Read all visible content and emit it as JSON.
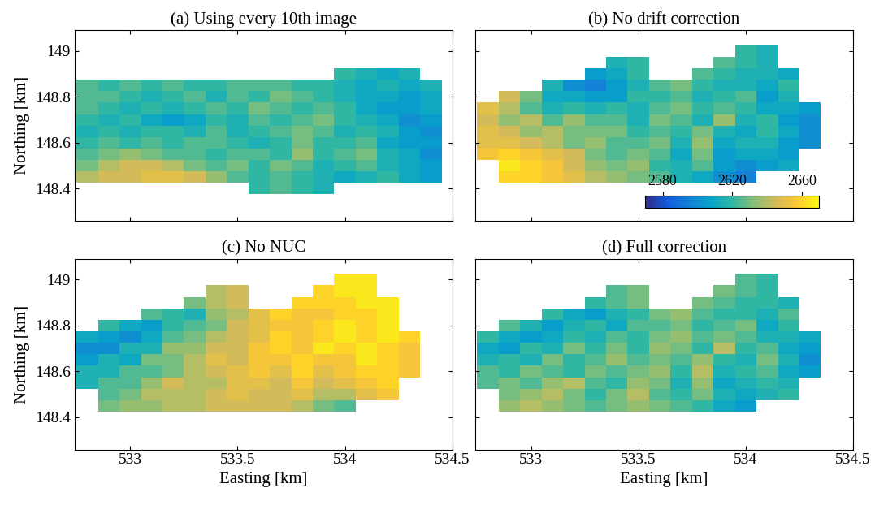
{
  "chart_data": [
    {
      "type": "heatmap",
      "title": "(a) Using every 10th image",
      "ylabel": "Northing [km]",
      "tick_labels": "y",
      "xlim": [
        532.74,
        534.5
      ],
      "ylim": [
        148.26,
        149.09
      ],
      "xticks": [
        533,
        533.5,
        534,
        534.5
      ],
      "yticks": [
        148.4,
        148.6,
        148.8,
        149
      ],
      "clim": [
        2570,
        2670
      ],
      "x": [
        532.8,
        532.9,
        533.0,
        533.1,
        533.2,
        533.3,
        533.4,
        533.5,
        533.6,
        533.7,
        533.8,
        533.9,
        534.0,
        534.1,
        534.2,
        534.3,
        534.4
      ],
      "y": [
        148.4,
        148.45,
        148.5,
        148.55,
        148.6,
        148.65,
        148.7,
        148.75,
        148.8,
        148.85,
        148.9,
        148.95,
        149.0
      ],
      "cells": [
        [
          null,
          null,
          null,
          null,
          null,
          null,
          null,
          null,
          2620,
          2625,
          2620,
          2615,
          null,
          null,
          null,
          null,
          null
        ],
        [
          2640,
          2645,
          2645,
          2650,
          2650,
          2645,
          2635,
          2625,
          2620,
          2625,
          2620,
          2615,
          2610,
          2615,
          2620,
          2610,
          2605
        ],
        [
          2630,
          2640,
          2645,
          2645,
          2640,
          2630,
          2625,
          2630,
          2620,
          2630,
          2625,
          2615,
          2620,
          2625,
          2615,
          2610,
          2605
        ],
        [
          2625,
          2630,
          2635,
          2630,
          2625,
          2625,
          2620,
          2625,
          2625,
          2620,
          2635,
          2620,
          2625,
          2630,
          2615,
          2610,
          2600
        ],
        [
          2620,
          2625,
          2620,
          2625,
          2620,
          2625,
          2625,
          2620,
          2615,
          2620,
          2630,
          2620,
          2620,
          2625,
          2610,
          2605,
          2605
        ],
        [
          2615,
          2620,
          2615,
          2620,
          2620,
          2615,
          2625,
          2615,
          2620,
          2625,
          2630,
          2625,
          2615,
          2620,
          2615,
          2605,
          2600
        ],
        [
          2620,
          2615,
          2620,
          2610,
          2605,
          2610,
          2620,
          2615,
          2625,
          2620,
          2625,
          2630,
          2620,
          2615,
          2610,
          2600,
          2605
        ],
        [
          2625,
          2620,
          2615,
          2620,
          2615,
          2620,
          2625,
          2620,
          2630,
          2625,
          2620,
          2625,
          2620,
          2610,
          2605,
          2605,
          2610
        ],
        [
          2625,
          2625,
          2620,
          2615,
          2620,
          2625,
          2615,
          2625,
          2620,
          2630,
          2625,
          2620,
          2615,
          2610,
          2610,
          2605,
          2610
        ],
        [
          2625,
          2620,
          2625,
          2620,
          2625,
          2620,
          2620,
          2625,
          2625,
          2625,
          2620,
          2620,
          2615,
          2610,
          2615,
          2610,
          2615
        ],
        [
          null,
          null,
          null,
          null,
          null,
          null,
          null,
          null,
          null,
          null,
          null,
          null,
          2620,
          2615,
          2610,
          2615,
          null
        ],
        [
          null,
          null,
          null,
          null,
          null,
          null,
          null,
          null,
          null,
          null,
          null,
          null,
          null,
          null,
          null,
          null,
          null
        ],
        [
          null,
          null,
          null,
          null,
          null,
          null,
          null,
          null,
          null,
          null,
          null,
          null,
          null,
          null,
          null,
          null,
          null
        ]
      ]
    },
    {
      "type": "heatmap",
      "title": "(b) No drift correction",
      "tick_labels": false,
      "xlim": [
        532.74,
        534.5
      ],
      "ylim": [
        148.26,
        149.09
      ],
      "xticks": [
        533,
        533.5,
        534,
        534.5
      ],
      "yticks": [
        148.4,
        148.6,
        148.8,
        149
      ],
      "clim": [
        2570,
        2670
      ],
      "colorbar": {
        "ticks": [
          2580,
          2620,
          2660
        ]
      },
      "x": [
        532.8,
        532.9,
        533.0,
        533.1,
        533.2,
        533.3,
        533.4,
        533.5,
        533.6,
        533.7,
        533.8,
        533.9,
        534.0,
        534.1,
        534.2,
        534.3,
        534.4
      ],
      "y": [
        148.4,
        148.45,
        148.5,
        148.55,
        148.6,
        148.65,
        148.7,
        148.75,
        148.8,
        148.85,
        148.9,
        148.95,
        149.0
      ],
      "cells": [
        [
          null,
          null,
          null,
          null,
          null,
          null,
          null,
          null,
          null,
          null,
          null,
          null,
          null,
          null,
          null,
          null,
          null
        ],
        [
          null,
          2660,
          2660,
          2655,
          2650,
          2640,
          2635,
          2630,
          2625,
          2615,
          2610,
          2600,
          2595,
          null,
          null,
          null,
          null
        ],
        [
          null,
          2665,
          2660,
          2655,
          2645,
          2635,
          2630,
          2635,
          2620,
          2615,
          2625,
          2605,
          2600,
          2605,
          2610,
          null,
          null
        ],
        [
          2655,
          2660,
          2655,
          2650,
          2645,
          2630,
          2625,
          2630,
          2625,
          2610,
          2630,
          2605,
          2610,
          2610,
          2605,
          null,
          null
        ],
        [
          2650,
          2650,
          2645,
          2640,
          2630,
          2635,
          2625,
          2625,
          2630,
          2615,
          2635,
          2610,
          2615,
          2615,
          2605,
          2600,
          null
        ],
        [
          2650,
          2645,
          2635,
          2640,
          2630,
          2630,
          2630,
          2620,
          2625,
          2620,
          2630,
          2615,
          2610,
          2620,
          2610,
          2600,
          null
        ],
        [
          2645,
          2635,
          2640,
          2625,
          2635,
          2625,
          2625,
          2615,
          2630,
          2625,
          2615,
          2635,
          2615,
          2620,
          2605,
          2600,
          null
        ],
        [
          2650,
          2640,
          2625,
          2615,
          2620,
          2615,
          2620,
          2615,
          2625,
          2630,
          2620,
          2625,
          2620,
          2610,
          2610,
          2605,
          null
        ],
        [
          null,
          2645,
          2630,
          2610,
          2610,
          2605,
          2605,
          2620,
          2620,
          2625,
          2615,
          2620,
          2625,
          2605,
          2615,
          null,
          null
        ],
        [
          null,
          null,
          null,
          2615,
          2600,
          2595,
          2605,
          2615,
          2625,
          2630,
          2620,
          2615,
          2615,
          2610,
          2620,
          null,
          null
        ],
        [
          null,
          null,
          null,
          null,
          null,
          2605,
          2610,
          2620,
          null,
          null,
          2625,
          2620,
          2615,
          2615,
          2610,
          null,
          null
        ],
        [
          null,
          null,
          null,
          null,
          null,
          null,
          2615,
          2620,
          null,
          null,
          null,
          2625,
          2620,
          2615,
          null,
          null,
          null
        ],
        [
          null,
          null,
          null,
          null,
          null,
          null,
          null,
          null,
          null,
          null,
          null,
          null,
          2620,
          2615,
          null,
          null,
          null
        ]
      ]
    },
    {
      "type": "heatmap",
      "title": "(c) No NUC",
      "xlabel": "Easting [km]",
      "ylabel": "Northing [km]",
      "xlim": [
        532.74,
        534.5
      ],
      "ylim": [
        148.26,
        149.09
      ],
      "xticks": [
        533,
        533.5,
        534,
        534.5
      ],
      "yticks": [
        148.4,
        148.6,
        148.8,
        149
      ],
      "clim": [
        2570,
        2670
      ],
      "x": [
        532.8,
        532.9,
        533.0,
        533.1,
        533.2,
        533.3,
        533.4,
        533.5,
        533.6,
        533.7,
        533.8,
        533.9,
        534.0,
        534.1,
        534.2,
        534.3,
        534.4
      ],
      "y": [
        148.4,
        148.45,
        148.5,
        148.55,
        148.6,
        148.65,
        148.7,
        148.75,
        148.8,
        148.85,
        148.9,
        148.95,
        149.0
      ],
      "cells": [
        [
          null,
          null,
          null,
          null,
          null,
          null,
          null,
          null,
          null,
          null,
          null,
          null,
          null,
          null,
          null,
          null,
          null
        ],
        [
          null,
          2630,
          2635,
          2635,
          2640,
          2640,
          2645,
          2645,
          2645,
          2645,
          2640,
          2630,
          2625,
          null,
          null,
          null,
          null
        ],
        [
          null,
          2625,
          2630,
          2640,
          2640,
          2640,
          2645,
          2650,
          2645,
          2645,
          2650,
          2640,
          2640,
          2650,
          2655,
          null,
          null
        ],
        [
          2615,
          2625,
          2625,
          2635,
          2645,
          2640,
          2640,
          2650,
          2650,
          2645,
          2655,
          2645,
          2650,
          2655,
          2660,
          null,
          null
        ],
        [
          2615,
          2615,
          2625,
          2625,
          2630,
          2640,
          2645,
          2650,
          2655,
          2650,
          2660,
          2650,
          2655,
          2660,
          2660,
          2655,
          null
        ],
        [
          2605,
          2615,
          2610,
          2630,
          2630,
          2640,
          2650,
          2645,
          2655,
          2655,
          2660,
          2655,
          2655,
          2665,
          2660,
          2655,
          null
        ],
        [
          2600,
          2600,
          2615,
          2615,
          2635,
          2635,
          2645,
          2645,
          2655,
          2660,
          2655,
          2665,
          2660,
          2665,
          2660,
          2655,
          null
        ],
        [
          2610,
          2605,
          2600,
          2610,
          2625,
          2630,
          2640,
          2645,
          2650,
          2660,
          2655,
          2660,
          2665,
          2660,
          2665,
          2660,
          null
        ],
        [
          null,
          2620,
          2610,
          2605,
          2620,
          2625,
          2630,
          2645,
          2650,
          2655,
          2655,
          2660,
          2665,
          2660,
          2665,
          null,
          null
        ],
        [
          null,
          null,
          null,
          2625,
          2620,
          2615,
          2635,
          2640,
          2650,
          2660,
          2655,
          2655,
          2660,
          2660,
          2665,
          null,
          null
        ],
        [
          null,
          null,
          null,
          null,
          null,
          2630,
          2640,
          2645,
          null,
          null,
          2660,
          2660,
          2660,
          2665,
          2665,
          null,
          null
        ],
        [
          null,
          null,
          null,
          null,
          null,
          null,
          2640,
          2645,
          null,
          null,
          null,
          2660,
          2665,
          2665,
          null,
          null,
          null
        ],
        [
          null,
          null,
          null,
          null,
          null,
          null,
          null,
          null,
          null,
          null,
          null,
          null,
          2665,
          2665,
          null,
          null,
          null
        ]
      ]
    },
    {
      "type": "heatmap",
      "title": "(d) Full correction",
      "xlabel": "Easting [km]",
      "tick_labels": "x",
      "xlim": [
        532.74,
        534.5
      ],
      "ylim": [
        148.26,
        149.09
      ],
      "xticks": [
        533,
        533.5,
        534,
        534.5
      ],
      "yticks": [
        148.4,
        148.6,
        148.8,
        149
      ],
      "clim": [
        2570,
        2670
      ],
      "x": [
        532.8,
        532.9,
        533.0,
        533.1,
        533.2,
        533.3,
        533.4,
        533.5,
        533.6,
        533.7,
        533.8,
        533.9,
        534.0,
        534.1,
        534.2,
        534.3,
        534.4
      ],
      "y": [
        148.4,
        148.45,
        148.5,
        148.55,
        148.6,
        148.65,
        148.7,
        148.75,
        148.8,
        148.85,
        148.9,
        148.95,
        149.0
      ],
      "cells": [
        [
          null,
          null,
          null,
          null,
          null,
          null,
          null,
          null,
          null,
          null,
          null,
          null,
          null,
          null,
          null,
          null,
          null
        ],
        [
          null,
          2635,
          2640,
          2635,
          2630,
          2625,
          2630,
          2635,
          2630,
          2625,
          2620,
          2610,
          2605,
          null,
          null,
          null,
          null
        ],
        [
          null,
          2630,
          2635,
          2640,
          2630,
          2620,
          2630,
          2640,
          2625,
          2620,
          2630,
          2615,
          2610,
          2615,
          2620,
          null,
          null
        ],
        [
          2625,
          2630,
          2625,
          2635,
          2640,
          2625,
          2620,
          2635,
          2630,
          2615,
          2635,
          2610,
          2615,
          2620,
          2615,
          null,
          null
        ],
        [
          2625,
          2620,
          2630,
          2625,
          2620,
          2630,
          2625,
          2630,
          2635,
          2620,
          2640,
          2615,
          2620,
          2625,
          2610,
          2605,
          null
        ],
        [
          2615,
          2620,
          2615,
          2630,
          2620,
          2625,
          2635,
          2625,
          2630,
          2625,
          2635,
          2620,
          2615,
          2630,
          2615,
          2600,
          null
        ],
        [
          2610,
          2605,
          2620,
          2615,
          2630,
          2620,
          2630,
          2620,
          2635,
          2630,
          2620,
          2640,
          2620,
          2625,
          2610,
          2605,
          null
        ],
        [
          2620,
          2610,
          2605,
          2610,
          2620,
          2615,
          2625,
          2620,
          2630,
          2635,
          2625,
          2630,
          2625,
          2615,
          2615,
          2610,
          null
        ],
        [
          null,
          2625,
          2615,
          2605,
          2615,
          2620,
          2610,
          2625,
          2625,
          2630,
          2620,
          2625,
          2630,
          2610,
          2620,
          null,
          null
        ],
        [
          null,
          null,
          null,
          2620,
          2610,
          2605,
          2615,
          2620,
          2630,
          2635,
          2625,
          2620,
          2620,
          2615,
          2625,
          null,
          null
        ],
        [
          null,
          null,
          null,
          null,
          null,
          2620,
          2625,
          2630,
          null,
          null,
          2630,
          2625,
          2620,
          2620,
          2615,
          null,
          null
        ],
        [
          null,
          null,
          null,
          null,
          null,
          null,
          2625,
          2630,
          null,
          null,
          null,
          2630,
          2625,
          2620,
          null,
          null,
          null
        ],
        [
          null,
          null,
          null,
          null,
          null,
          null,
          null,
          null,
          null,
          null,
          null,
          null,
          2625,
          2620,
          null,
          null,
          null
        ]
      ]
    }
  ]
}
